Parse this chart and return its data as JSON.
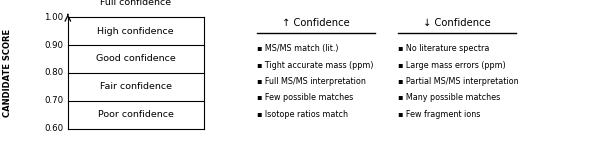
{
  "figsize": [
    5.9,
    1.43
  ],
  "dpi": 100,
  "ylabel": "CANDIDATE SCORE",
  "ylabel_fontsize": 6.0,
  "score_min": 0.6,
  "score_max": 1.0,
  "yticks": [
    0.6,
    0.7,
    0.8,
    0.9,
    1.0
  ],
  "bands": [
    {
      "ymin": 0.9,
      "ymax": 1.0,
      "label": "High confidence"
    },
    {
      "ymin": 0.8,
      "ymax": 0.9,
      "label": "Good confidence"
    },
    {
      "ymin": 0.7,
      "ymax": 0.8,
      "label": "Fair confidence"
    },
    {
      "ymin": 0.6,
      "ymax": 0.7,
      "label": "Poor confidence"
    }
  ],
  "full_confidence_label": "Full confidence",
  "up_arrow_label": "↑ Confidence",
  "down_arrow_label": "↓ Confidence",
  "up_items": [
    "▪ MS/MS match (lit.)",
    "▪ Tight accurate mass (ppm)",
    "▪ Full MS/MS interpretation",
    "▪ Few possible matches",
    "▪ Isotope ratios match"
  ],
  "down_items": [
    "▪ No literature spectra",
    "▪ Large mass errors (ppm)",
    "▪ Partial MS/MS interpretation",
    "▪ Many possible matches",
    "▪ Few fragment ions"
  ],
  "item_fontsize": 5.8,
  "header_fontsize": 7.2,
  "band_label_fontsize": 6.8,
  "tick_fontsize": 6.2
}
